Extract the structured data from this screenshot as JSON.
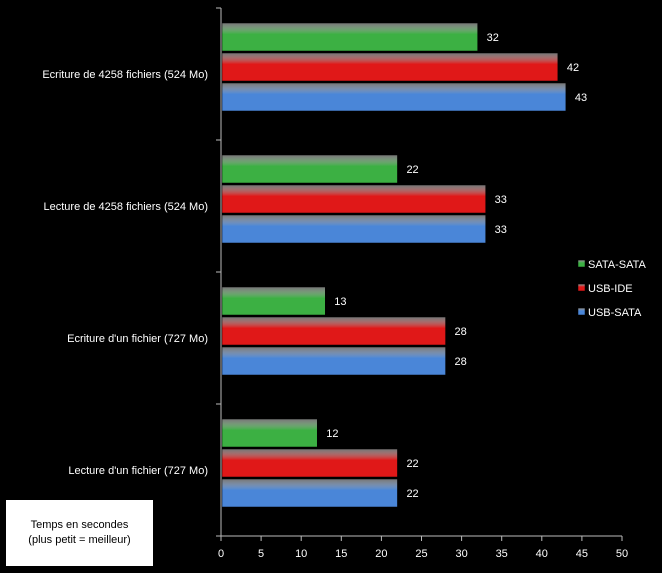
{
  "chart_data": {
    "type": "bar",
    "orientation": "horizontal",
    "categories": [
      "Ecriture de 4258 fichiers (524 Mo)",
      "Lecture de 4258 fichiers (524 Mo)",
      "Ecriture d'un fichier (727 Mo)",
      "Lecture d'un fichier (727 Mo)"
    ],
    "series": [
      {
        "name": "SATA-SATA",
        "color": "#3cb043",
        "values": [
          32,
          22,
          13,
          12
        ]
      },
      {
        "name": "USB-IDE",
        "color": "#e01818",
        "values": [
          42,
          33,
          28,
          22
        ]
      },
      {
        "name": "USB-SATA",
        "color": "#4a86d8",
        "values": [
          43,
          33,
          28,
          22
        ]
      }
    ],
    "xlim": [
      0,
      50
    ],
    "xticks": [
      "0",
      "5",
      "10",
      "15",
      "20",
      "25",
      "30",
      "35",
      "40",
      "45",
      "50"
    ],
    "grid": false,
    "legend_position": "right",
    "note_lines": [
      "Temps en secondes",
      "(plus petit = meilleur)"
    ]
  }
}
